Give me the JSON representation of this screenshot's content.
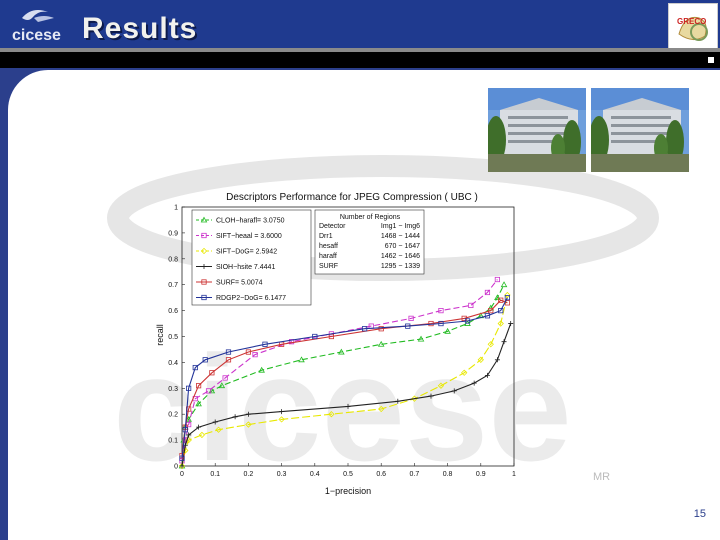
{
  "slide": {
    "title": "Results",
    "logo_text": "cicese",
    "page_number": "15",
    "watermark_text": "cicese",
    "watermark_suffix": "MR",
    "badge_text": "GRECO"
  },
  "colors": {
    "header_blue": "#1f3a8f",
    "accent_blue": "#2b3f8c"
  },
  "photos": [
    "building-photo",
    "building-photo"
  ],
  "chart_data": {
    "type": "line",
    "title": "Descriptors Performance for JPEG Compression ( UBC )",
    "xlabel": "1−precision",
    "ylabel": "recall",
    "xlim": [
      0,
      1
    ],
    "ylim": [
      0,
      1
    ],
    "x_ticks": [
      "0",
      "0.1",
      "0.2",
      "0.3",
      "0.4",
      "0.5",
      "0.6",
      "0.7",
      "0.8",
      "0.9",
      "1"
    ],
    "y_ticks": [
      "0",
      "0.1",
      "0.2",
      "0.3",
      "0.4",
      "0.5",
      "0.6",
      "0.7",
      "0.8",
      "0.9",
      "1"
    ],
    "legend": [
      "CLOH−harafl= 3.0750",
      "SIFT−heaal = 3.6000",
      "SIFT−DoG= 2.5942",
      "SIOH−hsite 7.4441",
      "SURF= 5.0074",
      "RDGP2−DoG= 6.1477"
    ],
    "table": {
      "header": [
        "Number of Regions"
      ],
      "rows": [
        [
          "Detector",
          "Img1 − Img6"
        ],
        [
          "Drr1",
          "1468 − 1444"
        ],
        [
          "hesaff",
          "670 − 1647"
        ],
        [
          "haraff",
          "1462 − 1646"
        ],
        [
          "SURF",
          "1295 − 1339"
        ]
      ]
    },
    "series": [
      {
        "color": "#22bb22",
        "marker": "triangle",
        "dash": "6,3",
        "x": [
          0.0,
          0.005,
          0.01,
          0.02,
          0.05,
          0.09,
          0.12,
          0.24,
          0.36,
          0.48,
          0.6,
          0.72,
          0.8,
          0.86,
          0.9,
          0.93,
          0.95,
          0.97
        ],
        "y": [
          0.0,
          0.1,
          0.15,
          0.18,
          0.24,
          0.29,
          0.31,
          0.37,
          0.41,
          0.44,
          0.47,
          0.49,
          0.52,
          0.55,
          0.58,
          0.61,
          0.65,
          0.7
        ]
      },
      {
        "color": "#cc33cc",
        "marker": "square",
        "dash": "6,3",
        "x": [
          0.0,
          0.01,
          0.02,
          0.04,
          0.08,
          0.13,
          0.22,
          0.33,
          0.45,
          0.57,
          0.69,
          0.78,
          0.87,
          0.92,
          0.95
        ],
        "y": [
          0.02,
          0.1,
          0.16,
          0.26,
          0.29,
          0.34,
          0.43,
          0.48,
          0.51,
          0.54,
          0.57,
          0.6,
          0.62,
          0.67,
          0.72
        ]
      },
      {
        "color": "#e8e800",
        "marker": "diamond",
        "dash": "8,3",
        "x": [
          0.0,
          0.01,
          0.02,
          0.06,
          0.11,
          0.2,
          0.3,
          0.45,
          0.6,
          0.7,
          0.78,
          0.85,
          0.9,
          0.93,
          0.96,
          0.98
        ],
        "y": [
          0.0,
          0.06,
          0.1,
          0.12,
          0.14,
          0.16,
          0.18,
          0.2,
          0.22,
          0.26,
          0.31,
          0.36,
          0.41,
          0.47,
          0.55,
          0.66
        ]
      },
      {
        "color": "#222222",
        "marker": "plus",
        "dash": "none",
        "x": [
          0.0,
          0.01,
          0.02,
          0.05,
          0.1,
          0.16,
          0.2,
          0.3,
          0.5,
          0.65,
          0.75,
          0.82,
          0.88,
          0.92,
          0.95,
          0.97,
          0.99
        ],
        "y": [
          0.0,
          0.08,
          0.12,
          0.15,
          0.17,
          0.19,
          0.2,
          0.21,
          0.23,
          0.25,
          0.27,
          0.29,
          0.32,
          0.35,
          0.41,
          0.48,
          0.55
        ]
      },
      {
        "color": "#cc3333",
        "marker": "square",
        "dash": "none",
        "x": [
          0.0,
          0.01,
          0.02,
          0.05,
          0.09,
          0.14,
          0.2,
          0.3,
          0.45,
          0.6,
          0.75,
          0.85,
          0.93,
          0.96,
          0.98
        ],
        "y": [
          0.04,
          0.15,
          0.22,
          0.31,
          0.36,
          0.41,
          0.44,
          0.47,
          0.5,
          0.53,
          0.55,
          0.57,
          0.6,
          0.64,
          0.63
        ]
      },
      {
        "color": "#223399",
        "marker": "square",
        "dash": "none",
        "x": [
          0.0,
          0.01,
          0.02,
          0.04,
          0.07,
          0.14,
          0.25,
          0.4,
          0.55,
          0.68,
          0.78,
          0.86,
          0.92,
          0.96,
          0.98
        ],
        "y": [
          0.03,
          0.14,
          0.3,
          0.38,
          0.41,
          0.44,
          0.47,
          0.5,
          0.53,
          0.54,
          0.55,
          0.56,
          0.58,
          0.6,
          0.65
        ]
      }
    ]
  }
}
